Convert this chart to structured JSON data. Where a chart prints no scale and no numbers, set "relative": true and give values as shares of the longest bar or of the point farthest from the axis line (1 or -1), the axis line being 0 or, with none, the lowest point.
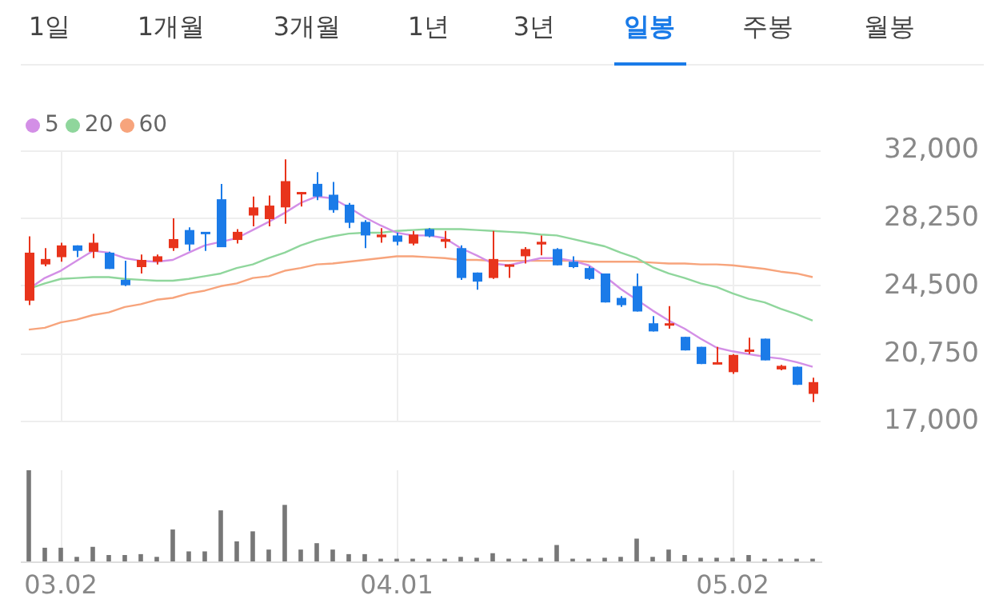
{
  "chart_data": [
    {
      "type": "candlestick",
      "annotations": [
        "1일",
        "1개월",
        "3개월",
        "1년",
        "3년",
        "일봉",
        "주봉",
        "월봉"
      ],
      "categories": [
        null,
        null,
        "03.02",
        null,
        null,
        null,
        null,
        null,
        null,
        null,
        null,
        null,
        null,
        null,
        null,
        null,
        null,
        null,
        null,
        null,
        null,
        null,
        null,
        "04.01",
        null,
        null,
        null,
        null,
        null,
        null,
        null,
        null,
        null,
        null,
        null,
        null,
        null,
        null,
        null,
        null,
        null,
        null,
        null,
        null,
        "05.02",
        null,
        null,
        null,
        null,
        null
      ],
      "ohlc": [
        [
          23700,
          27250,
          23450,
          26350
        ],
        [
          25700,
          26600,
          25600,
          26000
        ],
        [
          26100,
          26900,
          25850,
          26750
        ],
        [
          26750,
          26750,
          26100,
          26450
        ],
        [
          26400,
          27400,
          26050,
          26900
        ],
        [
          26350,
          26400,
          25450,
          25450
        ],
        [
          24850,
          25900,
          24500,
          24550
        ],
        [
          25550,
          26250,
          25200,
          25950
        ],
        [
          25850,
          26250,
          25700,
          26150
        ],
        [
          26600,
          28250,
          26450,
          27100
        ],
        [
          27600,
          27750,
          26450,
          26800
        ],
        [
          27500,
          27500,
          26450,
          27400
        ],
        [
          29300,
          30150,
          26650,
          26650
        ],
        [
          27050,
          27650,
          26850,
          27500
        ],
        [
          28400,
          29450,
          27800,
          28850
        ],
        [
          28200,
          29500,
          27800,
          28950
        ],
        [
          28850,
          31500,
          27950,
          30300
        ],
        [
          29600,
          29700,
          28900,
          29700
        ],
        [
          30150,
          30800,
          29250,
          29450
        ],
        [
          29550,
          30250,
          28550,
          28700
        ],
        [
          29000,
          29100,
          27700,
          28000
        ],
        [
          28050,
          28150,
          26600,
          27300
        ],
        [
          27200,
          27700,
          26900,
          27350
        ],
        [
          27300,
          27450,
          26750,
          26950
        ],
        [
          26850,
          27550,
          26750,
          27350
        ],
        [
          27650,
          27700,
          27200,
          27250
        ],
        [
          26950,
          27550,
          26600,
          27100
        ],
        [
          26600,
          26750,
          24850,
          24950
        ],
        [
          25250,
          25250,
          24300,
          24750
        ],
        [
          24950,
          27550,
          24900,
          26000
        ],
        [
          25650,
          25700,
          24950,
          25700
        ],
        [
          26150,
          26650,
          25750,
          26550
        ],
        [
          26800,
          27300,
          26200,
          26950
        ],
        [
          26550,
          26600,
          25650,
          25650
        ],
        [
          25850,
          26150,
          25500,
          25550
        ],
        [
          25500,
          25600,
          24850,
          24900
        ],
        [
          25200,
          25200,
          23600,
          23600
        ],
        [
          23850,
          23950,
          23350,
          23450
        ],
        [
          24500,
          25200,
          23100,
          23100
        ],
        [
          22450,
          22850,
          22000,
          22000
        ],
        [
          22350,
          23400,
          22150,
          22450
        ],
        [
          21700,
          21700,
          20950,
          20950
        ],
        [
          21150,
          21150,
          20200,
          20200
        ],
        [
          20250,
          21150,
          20200,
          20300
        ],
        [
          19750,
          20750,
          19650,
          20700
        ],
        [
          20950,
          21650,
          20750,
          21000
        ],
        [
          21600,
          21600,
          20400,
          20400
        ],
        [
          19900,
          20150,
          19850,
          20100
        ],
        [
          20050,
          20050,
          19050,
          19050
        ],
        [
          18550,
          19450,
          18100,
          19200
        ]
      ],
      "colors": [
        "#e8341c",
        "#e8341c",
        "#e8341c",
        "#1b7be8",
        "#e8341c",
        "#1b7be8",
        "#1b7be8",
        "#e8341c",
        "#e8341c",
        "#e8341c",
        "#1b7be8",
        "#1b7be8",
        "#1b7be8",
        "#e8341c",
        "#e8341c",
        "#e8341c",
        "#e8341c",
        "#e8341c",
        "#1b7be8",
        "#1b7be8",
        "#1b7be8",
        "#1b7be8",
        "#e8341c",
        "#1b7be8",
        "#e8341c",
        "#1b7be8",
        "#e8341c",
        "#1b7be8",
        "#1b7be8",
        "#e8341c",
        "#e8341c",
        "#e8341c",
        "#e8341c",
        "#1b7be8",
        "#1b7be8",
        "#1b7be8",
        "#1b7be8",
        "#1b7be8",
        "#1b7be8",
        "#1b7be8",
        "#e8341c",
        "#1b7be8",
        "#1b7be8",
        "#e8341c",
        "#e8341c",
        "#e8341c",
        "#1b7be8",
        "#e8341c",
        "#1b7be8",
        "#e8341c"
      ],
      "series": [
        {
          "name": "5",
          "type": "line",
          "color": "#d38fe6",
          "values": [
            24350,
            24950,
            25350,
            25900,
            26450,
            26350,
            26050,
            25900,
            25850,
            25950,
            26350,
            26750,
            26950,
            27150,
            27600,
            28050,
            28550,
            29100,
            29450,
            29350,
            28850,
            28300,
            27850,
            27450,
            27300,
            27300,
            27150,
            26600,
            26200,
            25750,
            25650,
            25850,
            26050,
            26050,
            25900,
            25650,
            25050,
            24350,
            23750,
            23150,
            22600,
            22150,
            21600,
            21100,
            20900,
            20750,
            20600,
            20500,
            20300,
            20050
          ]
        },
        {
          "name": "20",
          "type": "line",
          "color": "#8fd69c",
          "values": [
            24350,
            24650,
            24900,
            24950,
            25000,
            25000,
            24900,
            24850,
            24800,
            24800,
            24900,
            25050,
            25200,
            25500,
            25700,
            26050,
            26350,
            26750,
            27050,
            27250,
            27400,
            27450,
            27450,
            27550,
            27600,
            27650,
            27650,
            27650,
            27600,
            27550,
            27500,
            27450,
            27350,
            27300,
            27100,
            26900,
            26700,
            26350,
            26050,
            25550,
            25200,
            24950,
            24650,
            24450,
            24100,
            23800,
            23600,
            23250,
            22950,
            22600
          ]
        },
        {
          "name": "60",
          "type": "line",
          "color": "#f7a47c",
          "values": [
            22100,
            22200,
            22500,
            22650,
            22900,
            23050,
            23350,
            23500,
            23750,
            23850,
            24100,
            24250,
            24500,
            24650,
            24950,
            25050,
            25350,
            25500,
            25700,
            25750,
            25850,
            25950,
            26050,
            26150,
            26150,
            26100,
            26050,
            25950,
            25950,
            25900,
            25900,
            25900,
            25900,
            25900,
            25900,
            25850,
            25850,
            25850,
            25850,
            25800,
            25750,
            25750,
            25700,
            25700,
            25650,
            25550,
            25450,
            25300,
            25200,
            25000
          ]
        }
      ],
      "ylim": [
        17000,
        32000
      ],
      "yticks": [
        {
          "value": 17000,
          "label": "17,000"
        },
        {
          "value": 20750,
          "label": "20,750"
        },
        {
          "value": 24500,
          "label": "24,500"
        },
        {
          "value": 28250,
          "label": "28,250"
        },
        {
          "value": 32000,
          "label": "32,000"
        }
      ],
      "grid": true,
      "legend": "top left",
      "tick_labels": "y"
    },
    {
      "type": "bar",
      "relative": true,
      "color": "#777777",
      "grid": "x",
      "tick_labels": "x",
      "categories": [
        null,
        null,
        "03.02",
        null,
        null,
        null,
        null,
        null,
        null,
        null,
        null,
        null,
        null,
        null,
        null,
        null,
        null,
        null,
        null,
        null,
        null,
        null,
        null,
        "04.01",
        null,
        null,
        null,
        null,
        null,
        null,
        null,
        null,
        null,
        null,
        null,
        null,
        null,
        null,
        null,
        null,
        null,
        null,
        null,
        null,
        "05.02",
        null,
        null,
        null,
        null,
        null
      ],
      "values": [
        1.0,
        0.15,
        0.15,
        0.05,
        0.16,
        0.07,
        0.07,
        0.08,
        0.05,
        0.35,
        0.11,
        0.11,
        0.56,
        0.22,
        0.33,
        0.13,
        0.62,
        0.13,
        0.2,
        0.13,
        0.08,
        0.08,
        0.03,
        0.03,
        0.03,
        0.03,
        0.03,
        0.05,
        0.04,
        0.09,
        0.03,
        0.03,
        0.04,
        0.18,
        0.03,
        0.03,
        0.04,
        0.05,
        0.25,
        0.05,
        0.13,
        0.07,
        0.04,
        0.04,
        0.04,
        0.07,
        0.03,
        0.03,
        0.03,
        0.03
      ]
    }
  ]
}
